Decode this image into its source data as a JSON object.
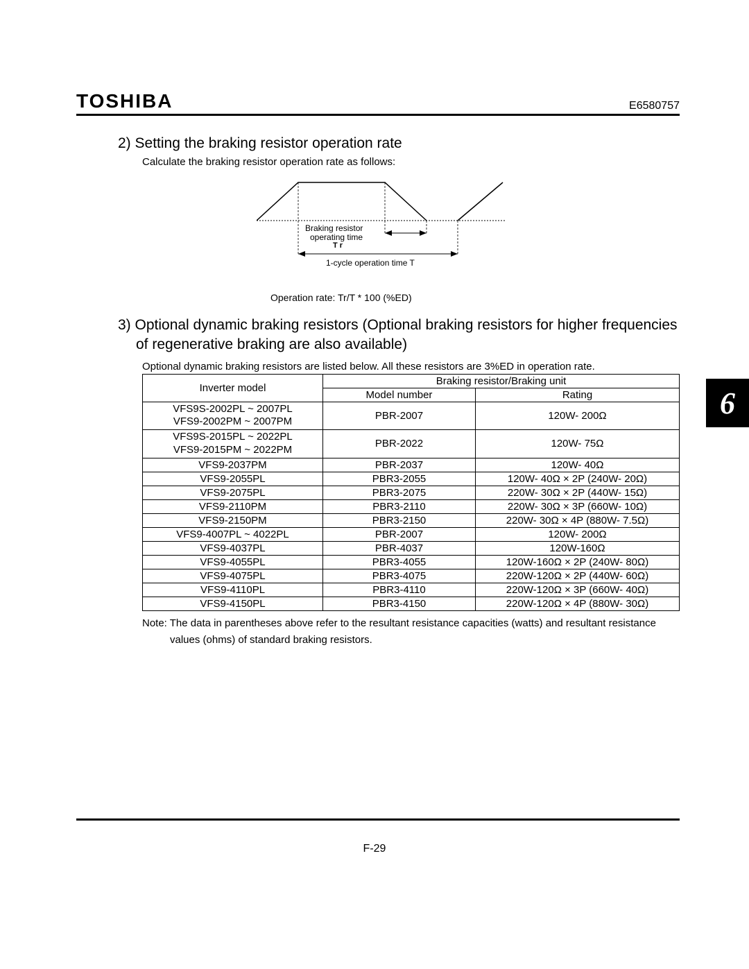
{
  "header": {
    "brand": "TOSHIBA",
    "doc_number": "E6580757"
  },
  "section2": {
    "title": "2)  Setting the braking resistor operation rate",
    "subtitle": "Calculate the braking resistor operation rate as follows:",
    "diagram": {
      "label_braking": "Braking resistor",
      "label_op_time": "operating time",
      "label_tr": "T r",
      "label_cycle": "1-cycle operation time T"
    },
    "op_rate": "Operation rate: Tr/T * 100 (%ED)"
  },
  "section3": {
    "title": "3)  Optional dynamic braking resistors (Optional braking resistors for higher frequencies of regenerative braking are also available)",
    "subtitle": "Optional dynamic braking resistors are listed below.  All these resistors are 3%ED in operation rate.",
    "table": {
      "col_inverter": "Inverter model",
      "col_group": "Braking resistor/Braking unit",
      "col_model": "Model number",
      "col_rating": "Rating",
      "rows": [
        {
          "inv": "VFS9S-2002PL ~ 2007PL\nVFS9-2002PM ~ 2007PM",
          "model": "PBR-2007",
          "rating": "120W- 200Ω"
        },
        {
          "inv": "VFS9S-2015PL ~ 2022PL\nVFS9-2015PM ~ 2022PM",
          "model": "PBR-2022",
          "rating": "120W-  75Ω"
        },
        {
          "inv": "VFS9-2037PM",
          "model": "PBR-2037",
          "rating": "120W-  40Ω"
        },
        {
          "inv": "VFS9-2055PL",
          "model": "PBR3-2055",
          "rating": "120W- 40Ω × 2P  (240W-  20Ω)"
        },
        {
          "inv": "VFS9-2075PL",
          "model": "PBR3-2075",
          "rating": "220W- 30Ω × 2P  (440W-  15Ω)"
        },
        {
          "inv": "VFS9-2110PM",
          "model": "PBR3-2110",
          "rating": "220W- 30Ω × 3P  (660W-  10Ω)"
        },
        {
          "inv": "VFS9-2150PM",
          "model": "PBR3-2150",
          "rating": "220W- 30Ω × 4P  (880W- 7.5Ω)"
        },
        {
          "inv": "VFS9-4007PL ~ 4022PL",
          "model": "PBR-2007",
          "rating": "120W- 200Ω"
        },
        {
          "inv": "VFS9-4037PL",
          "model": "PBR-4037",
          "rating": "120W-160Ω"
        },
        {
          "inv": "VFS9-4055PL",
          "model": "PBR3-4055",
          "rating": "120W-160Ω × 2P  (240W-  80Ω)"
        },
        {
          "inv": "VFS9-4075PL",
          "model": "PBR3-4075",
          "rating": "220W-120Ω × 2P  (440W-  60Ω)"
        },
        {
          "inv": "VFS9-4110PL",
          "model": "PBR3-4110",
          "rating": "220W-120Ω × 3P  (660W-  40Ω)"
        },
        {
          "inv": "VFS9-4150PL",
          "model": "PBR3-4150",
          "rating": "220W-120Ω × 4P  (880W-  30Ω)"
        }
      ]
    },
    "note": "Note: The data in parentheses above refer to the resultant resistance capacities (watts) and resultant resistance values (ohms) of standard braking resistors."
  },
  "side_tab": "6",
  "page_number": "F-29"
}
